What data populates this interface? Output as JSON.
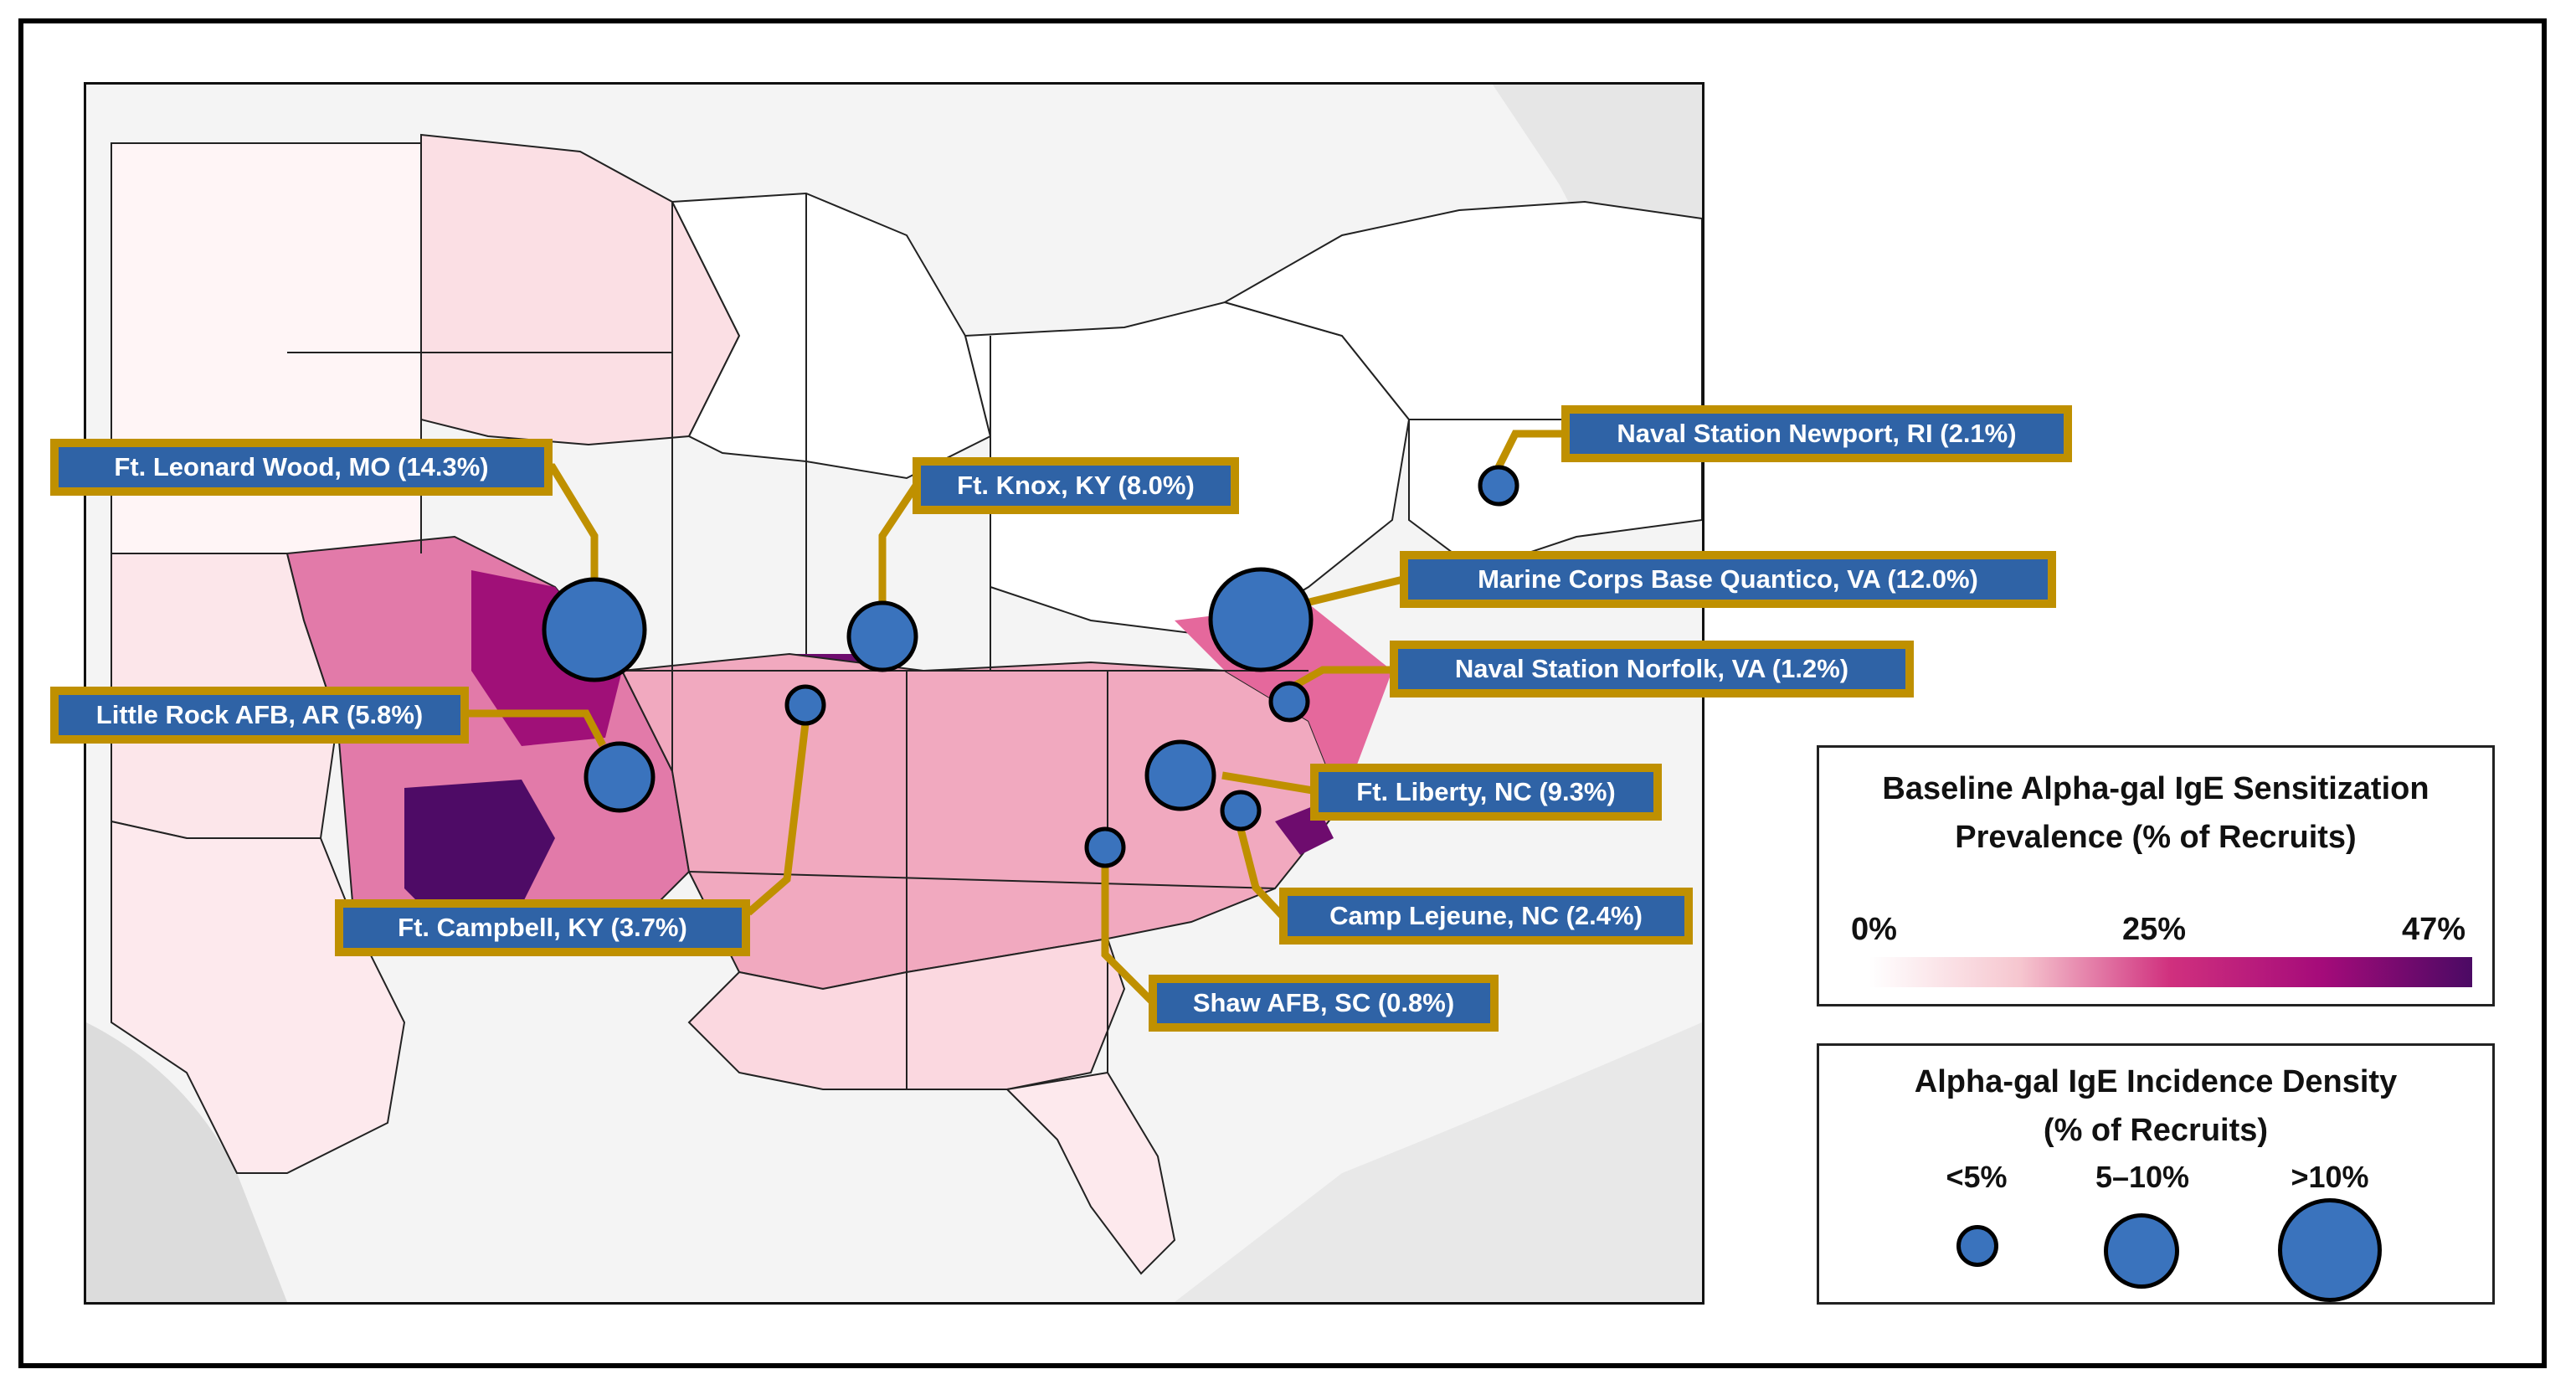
{
  "installations": [
    {
      "id": "ft-leonard-wood",
      "label": "Ft. Leonard Wood, MO (14.3%)",
      "incidence_pct": 14.3,
      "size_class": ">10%"
    },
    {
      "id": "ft-knox",
      "label": "Ft. Knox, KY (8.0%)",
      "incidence_pct": 8.0,
      "size_class": "5–10%"
    },
    {
      "id": "naval-station-newport",
      "label": "Naval Station Newport, RI (2.1%)",
      "incidence_pct": 2.1,
      "size_class": "<5%"
    },
    {
      "id": "mcb-quantico",
      "label": "Marine Corps Base Quantico, VA (12.0%)",
      "incidence_pct": 12.0,
      "size_class": ">10%"
    },
    {
      "id": "naval-station-norfolk",
      "label": "Naval Station Norfolk, VA (1.2%)",
      "incidence_pct": 1.2,
      "size_class": "<5%"
    },
    {
      "id": "little-rock-afb",
      "label": "Little Rock AFB, AR (5.8%)",
      "incidence_pct": 5.8,
      "size_class": "5–10%"
    },
    {
      "id": "ft-liberty",
      "label": "Ft. Liberty, NC (9.3%)",
      "incidence_pct": 9.3,
      "size_class": "5–10%"
    },
    {
      "id": "camp-lejeune",
      "label": "Camp Lejeune, NC (2.4%)",
      "incidence_pct": 2.4,
      "size_class": "<5%"
    },
    {
      "id": "ft-campbell",
      "label": "Ft. Campbell, KY (3.7%)",
      "incidence_pct": 3.7,
      "size_class": "<5%"
    },
    {
      "id": "shaw-afb",
      "label": "Shaw AFB, SC (0.8%)",
      "incidence_pct": 0.8,
      "size_class": "<5%"
    }
  ],
  "legend_prevalence": {
    "title_line1": "Baseline Alpha-gal IgE Sensitization",
    "title_line2": "Prevalence (% of Recruits)",
    "tick_min": "0%",
    "tick_mid": "25%",
    "tick_max": "47%",
    "colors": [
      "#ffffff",
      "#f6c6cf",
      "#d0307e",
      "#a50b7a",
      "#4b0a64"
    ]
  },
  "legend_incidence": {
    "title_line1": "Alpha-gal IgE Incidence Density",
    "title_line2": "(% of Recruits)",
    "classes": [
      "<5%",
      "5–10%",
      ">10%"
    ]
  },
  "colors": {
    "marker_fill": "#3a73bd",
    "label_fill": "#2f63a6",
    "label_border": "#bf9000",
    "leader_line": "#bf9000"
  }
}
